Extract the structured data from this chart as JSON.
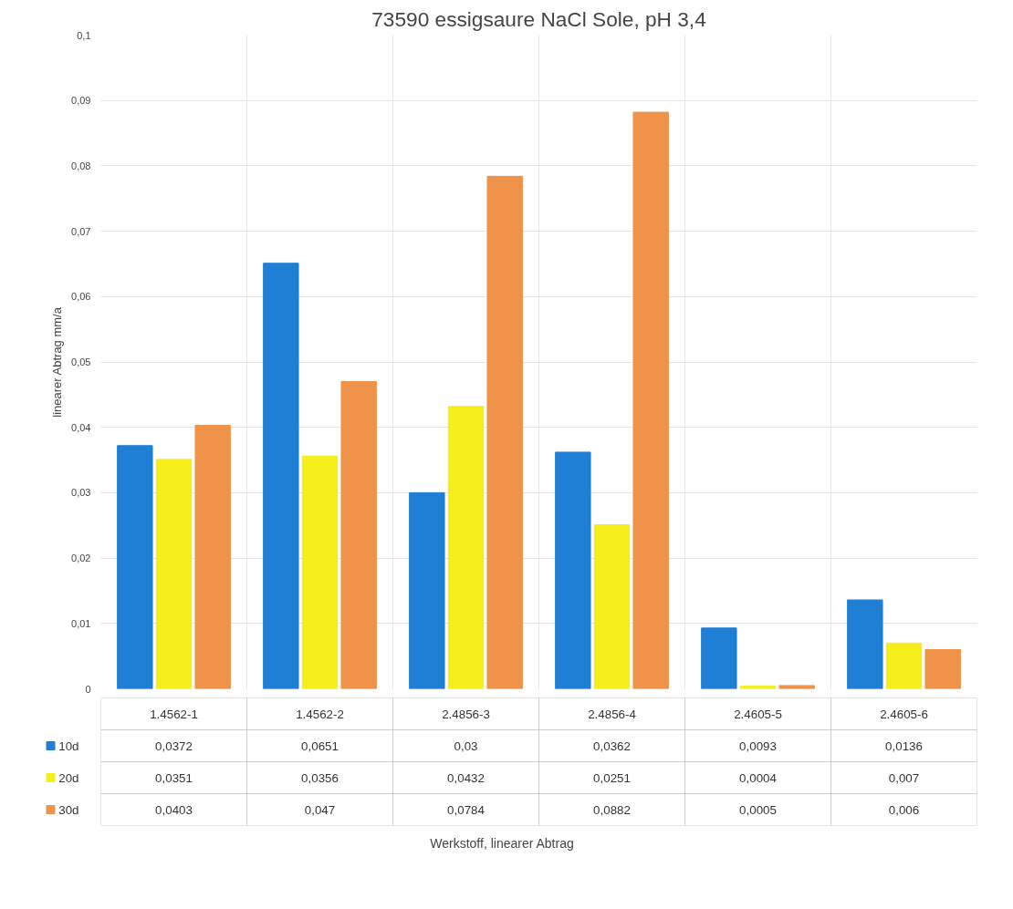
{
  "chart_data": {
    "type": "bar",
    "title": "73590 essigsaure NaCl Sole, pH 3,4",
    "annotations": [
      "Werkstoff, linearer Abtrag"
    ],
    "legend": "bottom left",
    "ylabel": "linearer Abtrag mm/a",
    "categories": [
      "1.4562-1",
      "1.4562-2",
      "2.4856-3",
      "2.4856-4",
      "2.4605-5",
      "2.4605-6"
    ],
    "series": [
      {
        "name": "10d",
        "color": "#1f7fd4",
        "values": [
          0.0372,
          0.0651,
          0.03,
          0.0362,
          0.0093,
          0.0136
        ],
        "value_labels": [
          "0,0372",
          "0,0651",
          "0,03",
          "0,0362",
          "0,0093",
          "0,0136"
        ]
      },
      {
        "name": "20d",
        "color": "#f5ee1a",
        "values": [
          0.0351,
          0.0356,
          0.0432,
          0.0251,
          0.0004,
          0.007
        ],
        "value_labels": [
          "0,0351",
          "0,0356",
          "0,0432",
          "0,0251",
          "0,0004",
          "0,007"
        ]
      },
      {
        "name": "30d",
        "color": "#f0934a",
        "values": [
          0.0403,
          0.047,
          0.0784,
          0.0882,
          0.0005,
          0.006
        ],
        "value_labels": [
          "0,0403",
          "0,047",
          "0,0784",
          "0,0882",
          "0,0005",
          "0,006"
        ]
      }
    ],
    "ylim": [
      0,
      0.1
    ],
    "yticks": [
      {
        "value": 0,
        "label": "0"
      },
      {
        "value": 0.01,
        "label": "0,01"
      },
      {
        "value": 0.02,
        "label": "0,02"
      },
      {
        "value": 0.03,
        "label": "0,03"
      },
      {
        "value": 0.04,
        "label": "0,04"
      },
      {
        "value": 0.05,
        "label": "0,05"
      },
      {
        "value": 0.06,
        "label": "0,06"
      },
      {
        "value": 0.07,
        "label": "0,07"
      },
      {
        "value": 0.08,
        "label": "0,08"
      },
      {
        "value": 0.09,
        "label": "0,09"
      },
      {
        "value": 0.1,
        "label": "0,1"
      }
    ],
    "grid": true
  }
}
